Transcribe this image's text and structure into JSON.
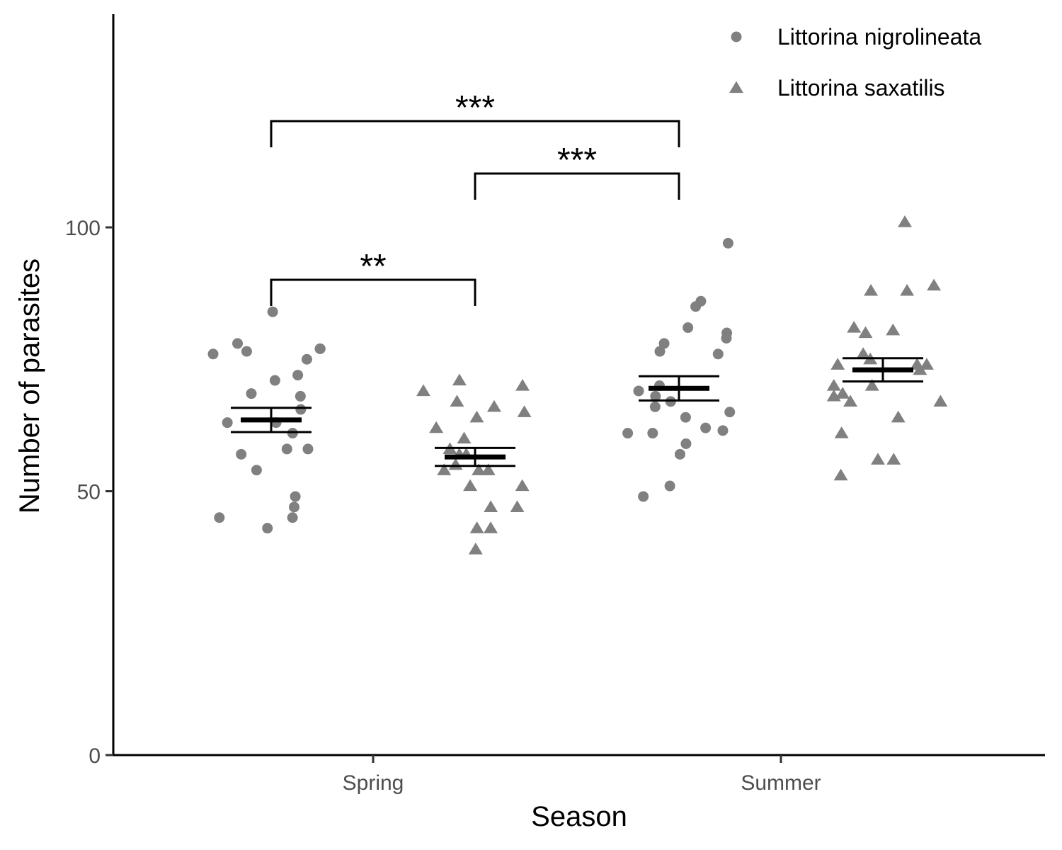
{
  "chart_data": {
    "type": "scatter",
    "xlabel": "Season",
    "ylabel": "Number of parasites",
    "categories": [
      "Spring",
      "Summer"
    ],
    "ylim": [
      0,
      140
    ],
    "yticks": [
      0,
      50,
      100
    ],
    "grid": false,
    "legend_position": "top-right",
    "point_color": "#808080",
    "series": [
      {
        "name": "Littorina nigrolineata",
        "shape": "circle",
        "points": {
          "Spring": [
            76,
            77,
            76.5,
            78,
            72,
            71,
            68.5,
            68,
            65.5,
            63,
            61,
            58,
            58,
            57,
            54,
            49,
            47,
            45,
            45,
            43,
            77,
            75,
            63,
            84
          ],
          "Summer": [
            97,
            86,
            85,
            81,
            80,
            79,
            78,
            76.5,
            76,
            70,
            69,
            68,
            67,
            66,
            65,
            64,
            62,
            61.5,
            61,
            61,
            59,
            57,
            51,
            49
          ]
        },
        "mean": {
          "Spring": 63.5,
          "Summer": 69.5
        },
        "se": {
          "Spring": 2.3,
          "Summer": 2.3
        }
      },
      {
        "name": "Littorina saxatilis",
        "shape": "triangle",
        "points": {
          "Spring": [
            70,
            69,
            71,
            67,
            66,
            65,
            64,
            62,
            60,
            58,
            57,
            57,
            55,
            54,
            54,
            54,
            51,
            51,
            47,
            47,
            43,
            43,
            39
          ],
          "Summer": [
            101,
            89,
            88,
            88,
            81,
            80.5,
            80,
            76,
            75,
            74,
            74,
            74,
            73,
            70,
            70,
            68.5,
            68,
            67,
            67,
            64,
            61,
            56,
            56,
            53
          ]
        },
        "mean": {
          "Spring": 56.5,
          "Summer": 73
        },
        "se": {
          "Spring": 1.7,
          "Summer": 2.2
        }
      }
    ],
    "annotations": [
      {
        "label": "**",
        "from": "Spring · Littorina nigrolineata",
        "to": "Spring · Littorina saxatilis"
      },
      {
        "label": "***",
        "from": "Spring · Littorina saxatilis",
        "to": "Summer · Littorina nigrolineata"
      },
      {
        "label": "***",
        "from": "Spring · Littorina nigrolineata",
        "to": "Summer · Littorina nigrolineata"
      }
    ]
  }
}
